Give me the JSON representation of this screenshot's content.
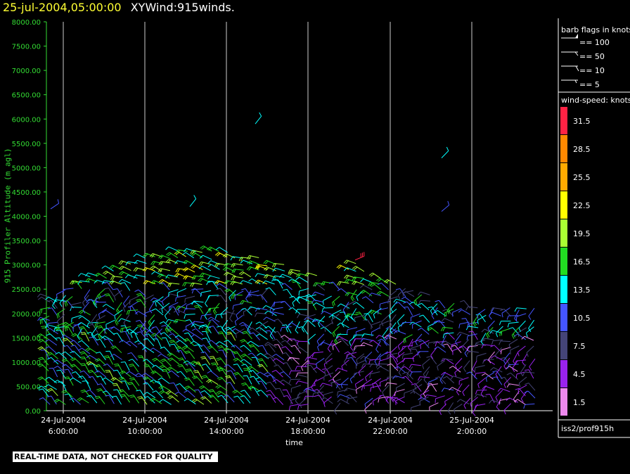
{
  "header": {
    "datetime": "25-jul-2004,05:00:00",
    "name": "XYWind:915winds."
  },
  "footer": {
    "qc_note": "REAL-TIME DATA, NOT CHECKED FOR QUALITY",
    "source": "iss2/prof915h"
  },
  "legend": {
    "barb_title": "barb flags in knots",
    "barbs": [
      "== 100",
      "== 50",
      "== 10",
      "== 5"
    ],
    "speed_title": "wind-speed: knots",
    "colors": [
      {
        "label": "31.5",
        "color": "#ff2244"
      },
      {
        "label": "28.5",
        "color": "#ff8800"
      },
      {
        "label": "25.5",
        "color": "#ffaa00"
      },
      {
        "label": "22.5",
        "color": "#ffff00"
      },
      {
        "label": "19.5",
        "color": "#aaff33"
      },
      {
        "label": "16.5",
        "color": "#22dd22"
      },
      {
        "label": "13.5",
        "color": "#00ffff"
      },
      {
        "label": "10.5",
        "color": "#4455ff"
      },
      {
        "label": "7.5",
        "color": "#444477"
      },
      {
        "label": "4.5",
        "color": "#9922ee"
      },
      {
        "label": "1.5",
        "color": "#ee88ee"
      }
    ]
  },
  "chart_data": {
    "type": "scatter",
    "title": "25-jul-2004,05:00:00  XYWind:915winds.",
    "xlabel": "time",
    "ylabel": "915 Profiler Altitude (m agl)",
    "ylim": [
      0,
      8000
    ],
    "yticks": [
      "0.00",
      "500.00",
      "1000.00",
      "1500.00",
      "2000.00",
      "2500.00",
      "3000.00",
      "3500.00",
      "4000.00",
      "4500.00",
      "5000.00",
      "5500.00",
      "6000.00",
      "6500.00",
      "7000.00",
      "7500.00",
      "8000.00"
    ],
    "xticks": [
      {
        "date": "24-Jul-2004",
        "time": "6:00:00"
      },
      {
        "date": "24-Jul-2004",
        "time": "10:00:00"
      },
      {
        "date": "24-Jul-2004",
        "time": "14:00:00"
      },
      {
        "date": "24-Jul-2004",
        "time": "18:00:00"
      },
      {
        "date": "24-Jul-2004",
        "time": "22:00:00"
      },
      {
        "date": "25-Jul-2004",
        "time": "2:00:00"
      }
    ],
    "grid": "vertical",
    "mark": "wind barbs"
  }
}
